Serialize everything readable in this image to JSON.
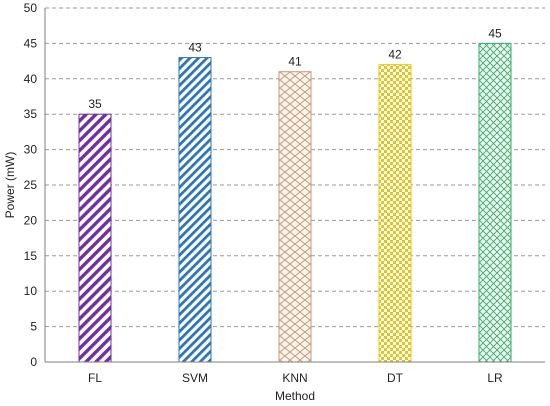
{
  "chart_data": {
    "type": "bar",
    "categories": [
      "FL",
      "SVM",
      "KNN",
      "DT",
      "LR"
    ],
    "values": [
      35,
      43,
      41,
      42,
      45
    ],
    "xlabel": "Method",
    "ylabel": "Power (mW)",
    "ylim": [
      0,
      50
    ],
    "yticks": [
      0,
      5,
      10,
      15,
      20,
      25,
      30,
      35,
      40,
      45,
      50
    ],
    "grid": true,
    "legend": "none",
    "bar_styles": [
      {
        "pattern": "diagonal-stripes",
        "color": "#7030a0"
      },
      {
        "pattern": "diagonal-stripes",
        "color": "#2e75b6"
      },
      {
        "pattern": "brick",
        "color": "#c49a78"
      },
      {
        "pattern": "checker",
        "color": "#e6c619"
      },
      {
        "pattern": "crosshatch",
        "color": "#3aaa6a"
      }
    ]
  }
}
